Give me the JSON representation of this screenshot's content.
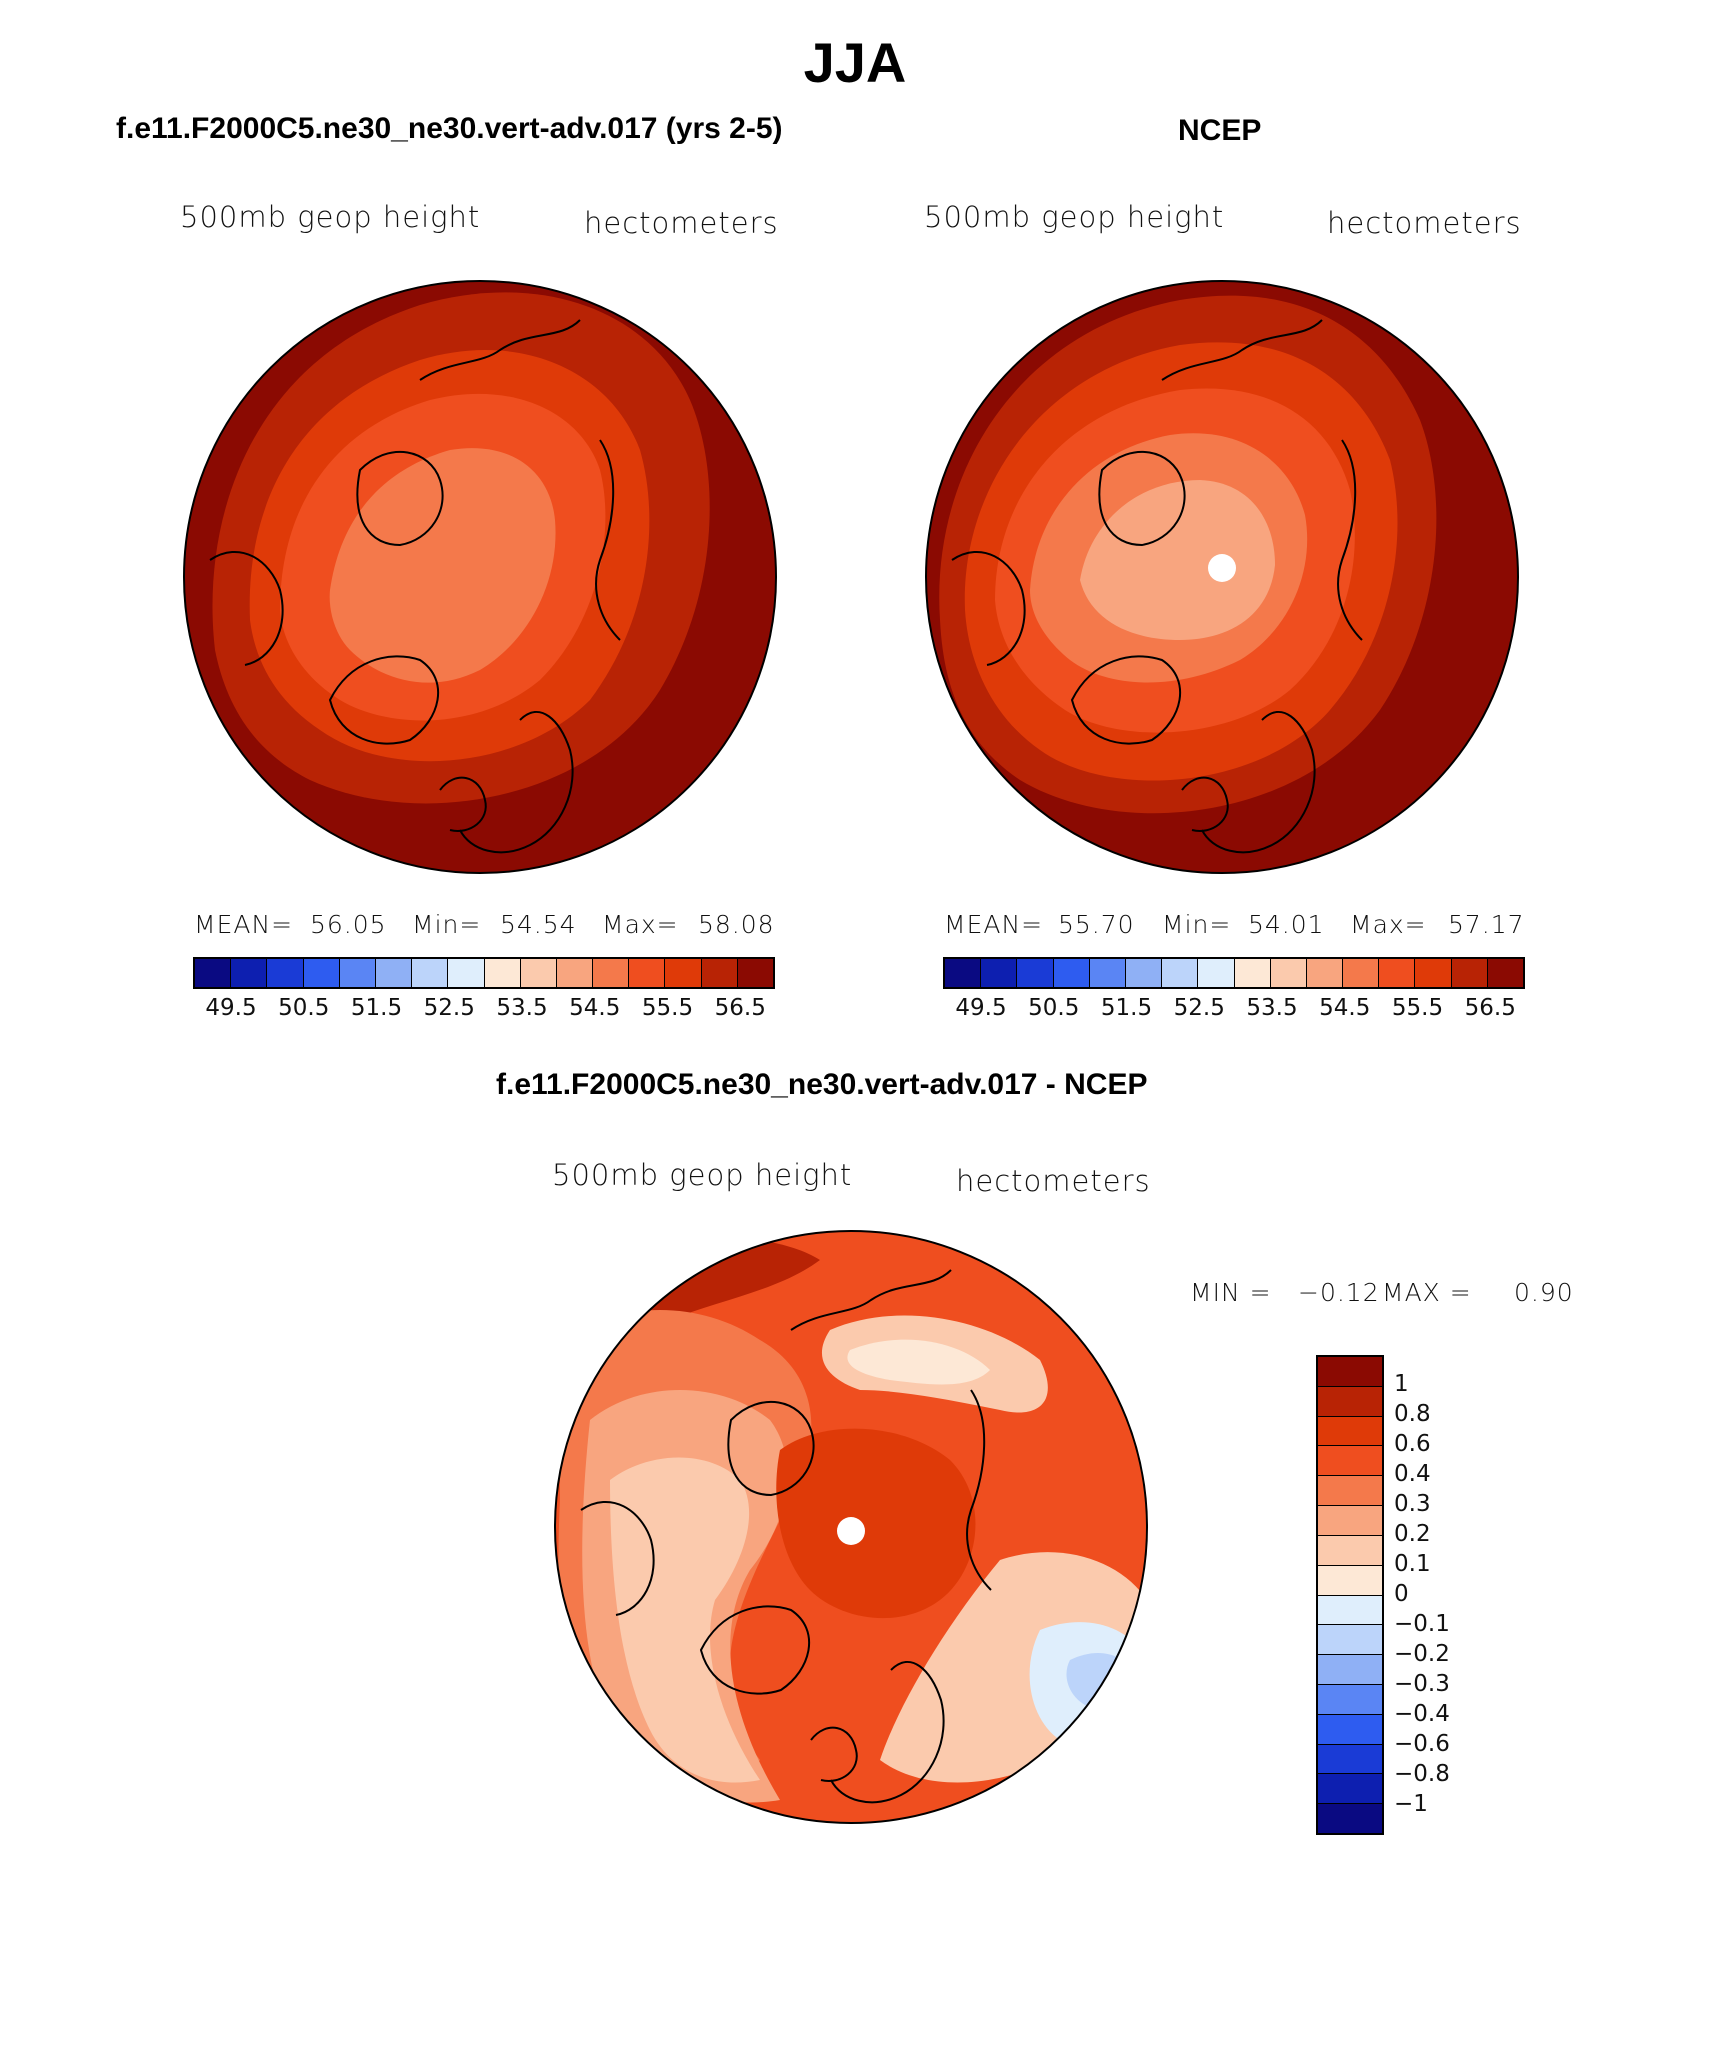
{
  "title": "JJA",
  "panels": {
    "model": {
      "title": "f.e11.F2000C5.ne30_ne30.vert-adv.017 (yrs 2-5)",
      "var_label": "500mb geop height",
      "units": "hectometers",
      "mean_label": "MEAN=",
      "mean": "56.05",
      "min_label": "Min=",
      "min": "54.54",
      "max_label": "Max=",
      "max": "58.08"
    },
    "obs": {
      "title": "NCEP",
      "var_label": "500mb geop height",
      "units": "hectometers",
      "mean_label": "MEAN=",
      "mean": "55.70",
      "min_label": "Min=",
      "min": "54.01",
      "max_label": "Max=",
      "max": "57.17"
    },
    "diff": {
      "title": "f.e11.F2000C5.ne30_ne30.vert-adv.017 - NCEP",
      "var_label": "500mb geop height",
      "units": "hectometers",
      "min_label": "MIN =",
      "min": "−0.12",
      "max_label": "MAX =",
      "max": "0.90"
    }
  },
  "colorbar_abs": {
    "ticks": [
      "49.5",
      "50.5",
      "51.5",
      "52.5",
      "53.5",
      "54.5",
      "55.5",
      "56.5"
    ],
    "colors": [
      "#0a0a82",
      "#0d1fb0",
      "#1a3bd6",
      "#2e5cf0",
      "#5a85f4",
      "#8fb0f5",
      "#bcd4fa",
      "#dfeefc",
      "#fde8d6",
      "#fbcaad",
      "#f8a57f",
      "#f4794b",
      "#ef4e1f",
      "#df3a08",
      "#b82305",
      "#8b0a02"
    ]
  },
  "colorbar_diff": {
    "ticks": [
      "1",
      "0.8",
      "0.6",
      "0.4",
      "0.3",
      "0.2",
      "0.1",
      "0",
      "−0.1",
      "−0.2",
      "−0.3",
      "−0.4",
      "−0.6",
      "−0.8",
      "−1"
    ],
    "colors": [
      "#8b0a02",
      "#b82305",
      "#df3a08",
      "#ef4e1f",
      "#f4794b",
      "#f8a57f",
      "#fbcaad",
      "#fde8d6",
      "#dfeefc",
      "#bcd4fa",
      "#8fb0f5",
      "#5a85f4",
      "#2e5cf0",
      "#1a3bd6",
      "#0d1fb0",
      "#0a0a82"
    ]
  },
  "map_colors": {
    "l565": "#8b0a02",
    "l560": "#b82305",
    "l555": "#df3a08",
    "l550": "#ef4e1f",
    "l545": "#f4794b",
    "l540": "#f8a57f",
    "d08": "#b82305",
    "d06": "#df3a08",
    "d04": "#ef4e1f",
    "d03": "#f4794b",
    "d02": "#f8a57f",
    "d01": "#fbcaad",
    "d00": "#fde8d6",
    "dn01": "#dfeefc",
    "dn02": "#bcd4fa"
  }
}
